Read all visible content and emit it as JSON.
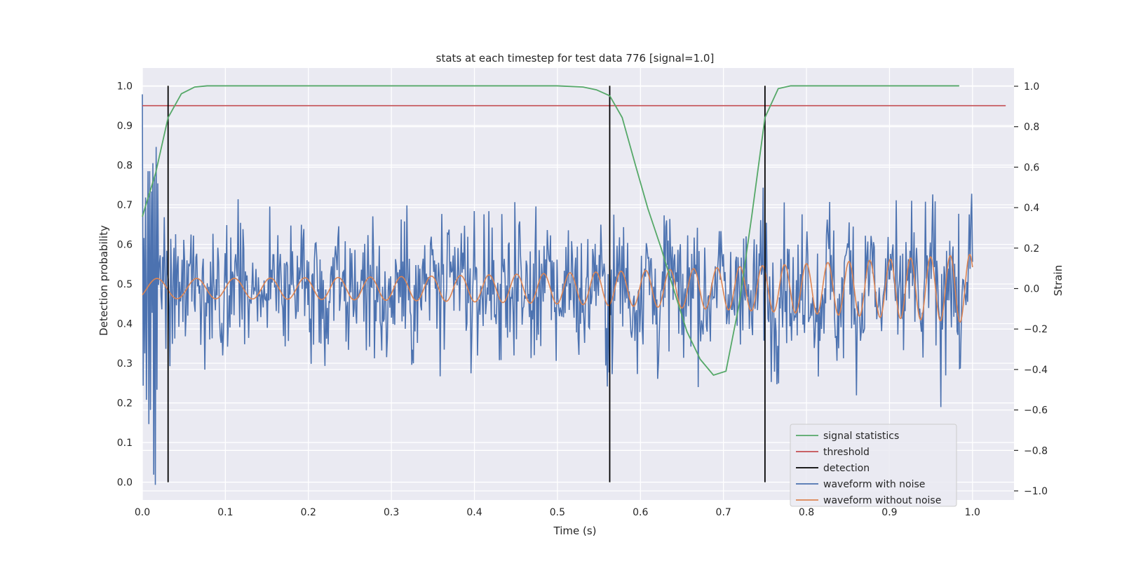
{
  "chart_data": {
    "type": "line",
    "title": "stats at each timestep for test data 776 [signal=1.0]",
    "xlabel": "Time (s)",
    "ylabel_left": "Detection probability",
    "ylabel_right": "Strain",
    "xlim": [
      0.0,
      1.05
    ],
    "ylim_left": [
      -0.045,
      1.045
    ],
    "ylim_right": [
      -1.045,
      1.09
    ],
    "x_ticks": [
      0.0,
      0.1,
      0.2,
      0.3,
      0.4,
      0.5,
      0.6,
      0.7,
      0.8,
      0.9,
      1.0
    ],
    "x_tick_labels": [
      "0.0",
      "0.1",
      "0.2",
      "0.3",
      "0.4",
      "0.5",
      "0.6",
      "0.7",
      "0.8",
      "0.9",
      "1.0"
    ],
    "y_left_ticks": [
      0.0,
      0.1,
      0.2,
      0.3,
      0.4,
      0.5,
      0.6,
      0.7,
      0.8,
      0.9,
      1.0
    ],
    "y_left_tick_labels": [
      "0.0",
      "0.1",
      "0.2",
      "0.3",
      "0.4",
      "0.5",
      "0.6",
      "0.7",
      "0.8",
      "0.9",
      "1.0"
    ],
    "y_right_ticks": [
      -1.0,
      -0.8,
      -0.6,
      -0.4,
      -0.2,
      0.0,
      0.2,
      0.4,
      0.6,
      0.8,
      1.0
    ],
    "y_right_tick_labels": [
      "−1.0",
      "−0.8",
      "−0.6",
      "−0.4",
      "−0.2",
      "0.0",
      "0.2",
      "0.4",
      "0.6",
      "0.8",
      "1.0"
    ],
    "grid": true,
    "legend_position": "lower-right",
    "colors": {
      "background": "#eaeaf2",
      "grid": "#ffffff",
      "signal_statistics": "#55a868",
      "threshold": "#c44e52",
      "detection": "#000000",
      "waveform_with_noise": "#4c72b0",
      "waveform_without_noise": "#dd8452"
    },
    "series": [
      {
        "name": "signal statistics",
        "axis": "left",
        "x": [
          0.0,
          0.016,
          0.031,
          0.047,
          0.063,
          0.078,
          0.094,
          0.2,
          0.3,
          0.4,
          0.5,
          0.531,
          0.547,
          0.563,
          0.578,
          0.594,
          0.609,
          0.625,
          0.641,
          0.656,
          0.672,
          0.688,
          0.703,
          0.719,
          0.734,
          0.75,
          0.766,
          0.781,
          0.8,
          0.9,
          0.984
        ],
        "y": [
          0.67,
          0.78,
          0.92,
          0.98,
          0.997,
          1.0,
          1.0,
          1.0,
          1.0,
          1.0,
          1.0,
          0.997,
          0.99,
          0.975,
          0.92,
          0.8,
          0.69,
          0.59,
          0.48,
          0.38,
          0.31,
          0.27,
          0.28,
          0.45,
          0.67,
          0.92,
          0.993,
          1.0,
          1.0,
          1.0,
          1.0
        ]
      },
      {
        "name": "threshold",
        "axis": "left",
        "x": [
          0.0,
          1.04
        ],
        "y": [
          0.95,
          0.95
        ]
      },
      {
        "name": "detection",
        "axis": "left",
        "x": [
          0.031,
          0.563,
          0.75
        ],
        "y_range": [
          0.0,
          1.0
        ]
      },
      {
        "name": "waveform with noise",
        "axis": "right",
        "x_range": [
          0.0,
          1.0
        ],
        "n_points": 1024,
        "y_approx_range": [
          -1.0,
          1.0
        ],
        "sample_y": [
          0.96,
          -0.48,
          0.25,
          -0.32,
          0.45,
          -0.55,
          0.02,
          0.58,
          -0.67,
          0.58,
          -0.6,
          0.48,
          -0.12,
          0.62,
          -0.92,
          0.55,
          -0.97,
          0.7,
          -0.5,
          0.52
        ]
      },
      {
        "name": "waveform without noise",
        "axis": "right",
        "x_range": [
          0.0,
          1.0
        ],
        "frequency_start_hz": 20,
        "frequency_end_hz": 43,
        "amplitude_start": 0.05,
        "amplitude_end": 0.17
      }
    ]
  }
}
